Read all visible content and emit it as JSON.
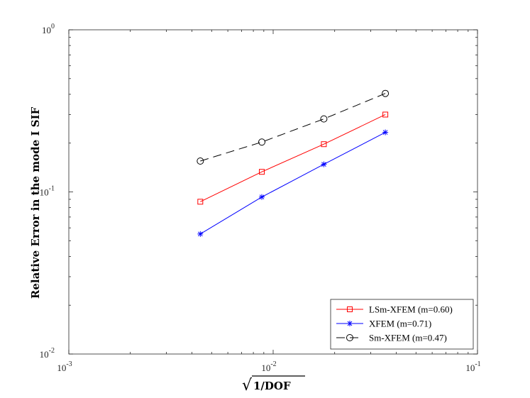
{
  "chart_data": {
    "type": "line",
    "xscale": "log",
    "yscale": "log",
    "xlim": [
      0.001,
      0.1
    ],
    "ylim": [
      0.01,
      1
    ],
    "x_ticks": [
      {
        "value": 0.001,
        "base": "10",
        "exp": "-3"
      },
      {
        "value": 0.01,
        "base": "10",
        "exp": "-2"
      },
      {
        "value": 0.1,
        "base": "10",
        "exp": "-1"
      }
    ],
    "y_ticks": [
      {
        "value": 0.01,
        "base": "10",
        "exp": "-2"
      },
      {
        "value": 0.1,
        "base": "10",
        "exp": "-1"
      },
      {
        "value": 1,
        "base": "10",
        "exp": "0"
      }
    ],
    "xlabel": "√(1/DOF)",
    "xlabel_parts": {
      "radical": "√",
      "body": "1/DOF"
    },
    "ylabel": "Relative Error in the mode I SIF",
    "grid": false,
    "legend_position": "bottom-right",
    "x": [
      0.0044,
      0.0088,
      0.0177,
      0.0354
    ],
    "series": [
      {
        "name": "LSm-XFEM (m=0.60)",
        "color": "#ff0000",
        "marker": "square",
        "dash": "solid",
        "values": [
          0.087,
          0.133,
          0.197,
          0.3
        ]
      },
      {
        "name": "XFEM (m=0.71)",
        "color": "#0000ff",
        "marker": "asterisk",
        "dash": "solid",
        "values": [
          0.055,
          0.093,
          0.148,
          0.233
        ]
      },
      {
        "name": "Sm-XFEM (m=0.47)",
        "color": "#000000",
        "marker": "circle",
        "dash": "dashed",
        "values": [
          0.155,
          0.203,
          0.282,
          0.405
        ]
      }
    ]
  }
}
